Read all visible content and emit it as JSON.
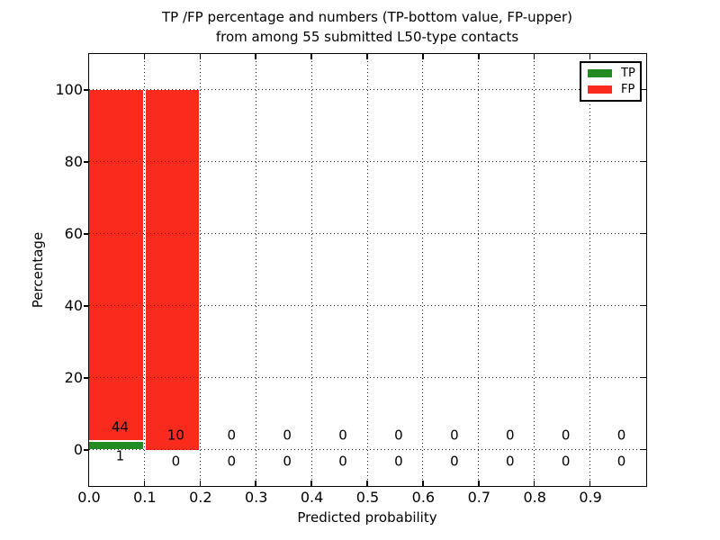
{
  "title": {
    "line1": "TP /FP percentage and numbers (TP-bottom value, FP-upper)",
    "line2": "from among 55 submitted L50-type contacts"
  },
  "axes": {
    "xlabel": "Predicted probability",
    "ylabel": "Percentage"
  },
  "legend": {
    "position": "upper-right",
    "items": [
      {
        "label": "TP",
        "color": "#228b22"
      },
      {
        "label": "FP",
        "color": "#fa2b1d"
      }
    ]
  },
  "chart_data": {
    "type": "bar",
    "subtype": "stacked-percentage-histogram",
    "title": "TP /FP percentage and numbers (TP-bottom value, FP-upper) from among 55 submitted L50-type contacts",
    "xlabel": "Predicted probability",
    "ylabel": "Percentage",
    "total_contacts": 55,
    "xlim": [
      0.0,
      1.0
    ],
    "ylim": [
      -10,
      110
    ],
    "grid": "dotted",
    "legend_position": "upper-right",
    "bin_width": 0.1,
    "bin_starts": [
      0.0,
      0.1,
      0.2,
      0.3,
      0.4,
      0.5,
      0.6,
      0.7,
      0.8,
      0.9
    ],
    "x_tick_labels": [
      "0.0",
      "0.1",
      "0.2",
      "0.3",
      "0.4",
      "0.5",
      "0.6",
      "0.7",
      "0.8",
      "0.9"
    ],
    "y_ticks": [
      0,
      20,
      40,
      60,
      80,
      100
    ],
    "series": [
      {
        "name": "TP",
        "color": "#228b22",
        "counts": [
          1,
          0,
          0,
          0,
          0,
          0,
          0,
          0,
          0,
          0
        ],
        "percent": [
          2.22,
          0,
          0,
          0,
          0,
          0,
          0,
          0,
          0,
          0
        ]
      },
      {
        "name": "FP",
        "color": "#fa2b1d",
        "counts": [
          44,
          10,
          0,
          0,
          0,
          0,
          0,
          0,
          0,
          0
        ],
        "percent": [
          97.78,
          100,
          0,
          0,
          0,
          0,
          0,
          0,
          0,
          0
        ]
      }
    ]
  }
}
